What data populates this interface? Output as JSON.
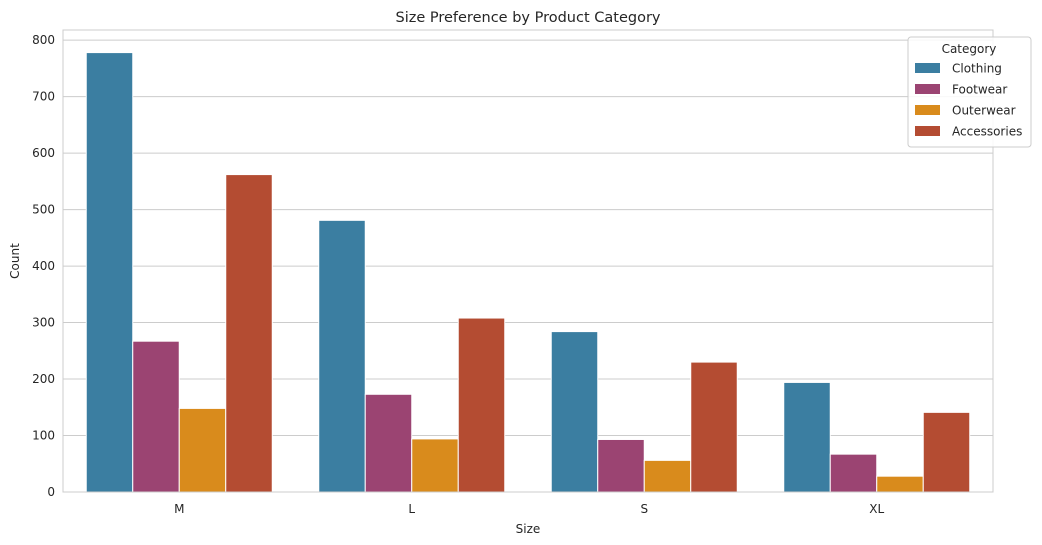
{
  "chart_data": {
    "type": "bar",
    "title": "Size Preference by Product Category",
    "xlabel": "Size",
    "ylabel": "Count",
    "categories": [
      "M",
      "L",
      "S",
      "XL"
    ],
    "ylim": [
      0,
      818
    ],
    "yticks": [
      0,
      100,
      200,
      300,
      400,
      500,
      600,
      700,
      800
    ],
    "grid": true,
    "legend": {
      "title": "Category",
      "placement": "top-right"
    },
    "series": [
      {
        "name": "Clothing",
        "color": "#3b7ea1",
        "values": [
          778,
          481,
          284,
          194
        ]
      },
      {
        "name": "Footwear",
        "color": "#9b4472",
        "values": [
          267,
          173,
          93,
          67
        ]
      },
      {
        "name": "Outerwear",
        "color": "#d98b1c",
        "values": [
          148,
          94,
          56,
          28
        ]
      },
      {
        "name": "Accessories",
        "color": "#b44c32",
        "values": [
          562,
          308,
          230,
          141
        ]
      }
    ]
  }
}
